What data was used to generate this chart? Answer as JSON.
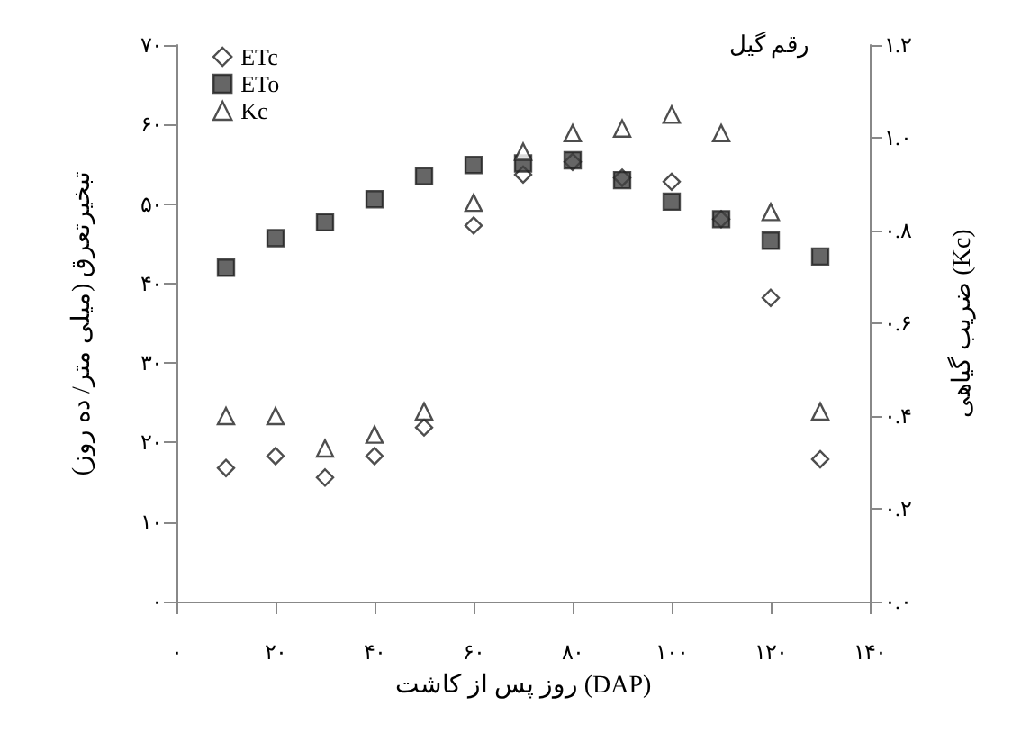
{
  "chart_data": {
    "type": "scatter",
    "xlabel": "روز پس از کاشت (DAP)",
    "ylabel": "تبخیرتعرق (میلی متر/ ده روز)",
    "y2label": "ضریب گیاهی (Kc)",
    "annotations": [
      "رقم گیل"
    ],
    "x": [
      10,
      20,
      30,
      40,
      50,
      60,
      70,
      80,
      90,
      100,
      110,
      120,
      130
    ],
    "series": [
      {
        "name": "ETc",
        "color": "#ffffff",
        "marker": "diamond",
        "values": [
          16.8,
          18.3,
          15.6,
          18.3,
          21.9,
          47.3,
          53.7,
          55.3,
          53.3,
          52.8,
          48.1,
          38.2,
          17.9
        ]
      },
      {
        "name": "ETo",
        "color": "#404040",
        "marker": "square",
        "values": [
          42.0,
          45.7,
          47.7,
          50.6,
          53.5,
          54.9,
          55.1,
          55.5,
          53.0,
          50.3,
          48.1,
          45.4,
          43.4
        ]
      },
      {
        "name": "Kc",
        "color": "#ffffff",
        "marker": "triangle",
        "axis": "y2",
        "values": [
          0.4,
          0.4,
          0.33,
          0.36,
          0.41,
          0.86,
          0.97,
          1.01,
          1.02,
          1.05,
          1.01,
          0.84,
          0.41
        ]
      }
    ],
    "xlim": [
      0,
      140
    ],
    "xticks": [
      {
        "value": 0,
        "label": "۰"
      },
      {
        "value": 20,
        "label": "۲۰"
      },
      {
        "value": 40,
        "label": "۴۰"
      },
      {
        "value": 60,
        "label": "۶۰"
      },
      {
        "value": 80,
        "label": "۸۰"
      },
      {
        "value": 100,
        "label": "۱۰۰"
      },
      {
        "value": 120,
        "label": "۱۲۰"
      },
      {
        "value": 140,
        "label": "۱۴۰"
      }
    ],
    "ylim": [
      0,
      70
    ],
    "yticks": [
      {
        "value": 0,
        "label": "۰"
      },
      {
        "value": 10,
        "label": "۱۰"
      },
      {
        "value": 20,
        "label": "۲۰"
      },
      {
        "value": 30,
        "label": "۳۰"
      },
      {
        "value": 40,
        "label": "۴۰"
      },
      {
        "value": 50,
        "label": "۵۰"
      },
      {
        "value": 60,
        "label": "۶۰"
      },
      {
        "value": 70,
        "label": "۷۰"
      }
    ],
    "y2lim": [
      0,
      1.2
    ],
    "y2ticks": [
      {
        "value": 0,
        "label": "۰.۰"
      },
      {
        "value": 0.2,
        "label": "۰.۲"
      },
      {
        "value": 0.4,
        "label": "۰.۴"
      },
      {
        "value": 0.6,
        "label": "۰.۶"
      },
      {
        "value": 0.8,
        "label": "۰.۸"
      },
      {
        "value": 1.0,
        "label": "۱.۰"
      },
      {
        "value": 1.2,
        "label": "۱.۲"
      }
    ],
    "grid": false,
    "legend": "top left"
  }
}
